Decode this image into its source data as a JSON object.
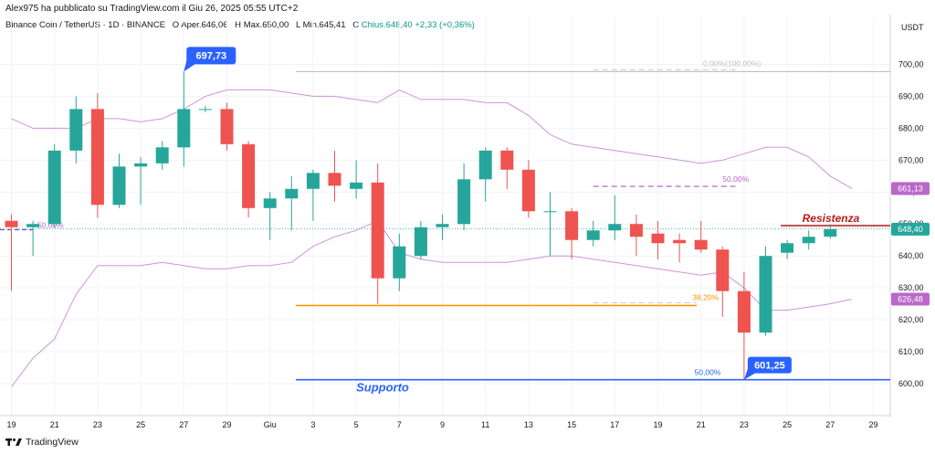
{
  "header": {
    "publisher": "Alex975 ha pubblicato su TradingView.com il Giu 26, 2025 05:55 UTC+2",
    "symbol": "Binance Coin / TetherUS · 1D · BINANCE",
    "o_label": "O",
    "o_value": "Aper.646,06",
    "h_label": "H",
    "h_value": "Max.650,00",
    "l_label": "L",
    "l_value": "Min.645,41",
    "c_label": "C",
    "c_value": "Chius.648,40",
    "change": "+2,33 (+0,36%)"
  },
  "footer": {
    "brand": "TradingView"
  },
  "colors": {
    "up": "#26a69a",
    "down": "#ef5350",
    "band": "#ce93d8",
    "support": "#2962ff",
    "fib": "#ff9800",
    "resistance": "#b71c1c",
    "text": "#131722",
    "grid": "#f0f3fa",
    "axis_text": "#131722"
  },
  "chart_data": {
    "type": "candlestick",
    "currency": "USDT",
    "ylim": [
      590,
      715
    ],
    "y_ticks": [
      "700,00",
      "690,00",
      "680,00",
      "670,00",
      "660,00",
      "650,00",
      "640,00",
      "630,00",
      "620,00",
      "610,00",
      "600,00"
    ],
    "x_ticks": [
      "19",
      "21",
      "23",
      "25",
      "27",
      "29",
      "Giu",
      "3",
      "5",
      "7",
      "9",
      "11",
      "13",
      "15",
      "17",
      "19",
      "21",
      "23",
      "25",
      "27",
      "29"
    ],
    "candles": [
      {
        "date": "May 19",
        "o": 651,
        "h": 653,
        "l": 629,
        "c": 649
      },
      {
        "date": "May 20",
        "o": 649,
        "h": 651,
        "l": 640,
        "c": 650
      },
      {
        "date": "May 21",
        "o": 650,
        "h": 675,
        "l": 649,
        "c": 673
      },
      {
        "date": "May 22",
        "o": 673,
        "h": 690,
        "l": 669,
        "c": 686
      },
      {
        "date": "May 23",
        "o": 686,
        "h": 691,
        "l": 652,
        "c": 656
      },
      {
        "date": "May 24",
        "o": 656,
        "h": 672,
        "l": 655,
        "c": 668
      },
      {
        "date": "May 25",
        "o": 668,
        "h": 671,
        "l": 656,
        "c": 669
      },
      {
        "date": "May 26",
        "o": 669,
        "h": 676,
        "l": 667,
        "c": 674
      },
      {
        "date": "May 27",
        "o": 674,
        "h": 697.73,
        "l": 668,
        "c": 686
      },
      {
        "date": "May 28",
        "o": 686,
        "h": 687,
        "l": 685,
        "c": 686
      },
      {
        "date": "May 29",
        "o": 686,
        "h": 688,
        "l": 673,
        "c": 675
      },
      {
        "date": "May 30",
        "o": 675,
        "h": 676,
        "l": 652,
        "c": 655
      },
      {
        "date": "May 31",
        "o": 655,
        "h": 660,
        "l": 645,
        "c": 658
      },
      {
        "date": "Jun 1",
        "o": 658,
        "h": 665,
        "l": 648,
        "c": 661
      },
      {
        "date": "Jun 2",
        "o": 661,
        "h": 667,
        "l": 651,
        "c": 666
      },
      {
        "date": "Jun 3",
        "o": 666,
        "h": 673,
        "l": 657,
        "c": 662
      },
      {
        "date": "Jun 4",
        "o": 661,
        "h": 670,
        "l": 658,
        "c": 663
      },
      {
        "date": "Jun 5",
        "o": 663,
        "h": 669,
        "l": 625,
        "c": 633
      },
      {
        "date": "Jun 6",
        "o": 633,
        "h": 647,
        "l": 629,
        "c": 643
      },
      {
        "date": "Jun 7",
        "o": 640,
        "h": 651,
        "l": 639,
        "c": 649
      },
      {
        "date": "Jun 8",
        "o": 649,
        "h": 653,
        "l": 645,
        "c": 650
      },
      {
        "date": "Jun 9",
        "o": 650,
        "h": 669,
        "l": 648,
        "c": 664
      },
      {
        "date": "Jun 10",
        "o": 664,
        "h": 674,
        "l": 657,
        "c": 673
      },
      {
        "date": "Jun 11",
        "o": 673,
        "h": 674,
        "l": 661,
        "c": 667
      },
      {
        "date": "Jun 12",
        "o": 667,
        "h": 670,
        "l": 652,
        "c": 654
      },
      {
        "date": "Jun 13",
        "o": 654,
        "h": 660,
        "l": 640,
        "c": 654
      },
      {
        "date": "Jun 14",
        "o": 654,
        "h": 655,
        "l": 639,
        "c": 645
      },
      {
        "date": "Jun 15",
        "o": 645,
        "h": 651,
        "l": 643,
        "c": 648
      },
      {
        "date": "Jun 16",
        "o": 648,
        "h": 659,
        "l": 645,
        "c": 650
      },
      {
        "date": "Jun 17",
        "o": 650,
        "h": 653,
        "l": 640,
        "c": 646
      },
      {
        "date": "Jun 18",
        "o": 647,
        "h": 651,
        "l": 639,
        "c": 644
      },
      {
        "date": "Jun 19",
        "o": 645,
        "h": 647,
        "l": 638,
        "c": 644
      },
      {
        "date": "Jun 20",
        "o": 645,
        "h": 651,
        "l": 641,
        "c": 642
      },
      {
        "date": "Jun 21",
        "o": 642,
        "h": 643,
        "l": 621,
        "c": 629
      },
      {
        "date": "Jun 22",
        "o": 629,
        "h": 635,
        "l": 601.25,
        "c": 616
      },
      {
        "date": "Jun 23",
        "o": 616,
        "h": 643,
        "l": 615,
        "c": 640
      },
      {
        "date": "Jun 24",
        "o": 641,
        "h": 645,
        "l": 639,
        "c": 644
      },
      {
        "date": "Jun 25",
        "o": 644,
        "h": 648,
        "l": 642,
        "c": 646
      },
      {
        "date": "Jun 26",
        "o": 646.06,
        "h": 650.0,
        "l": 645.41,
        "c": 648.4
      }
    ],
    "bollinger_upper": [
      683,
      680,
      680,
      680,
      683,
      683,
      682,
      683,
      686,
      690,
      692,
      692,
      692,
      691,
      690,
      690,
      689,
      688,
      692,
      689,
      689,
      689,
      688,
      688,
      684,
      678,
      675,
      674,
      673,
      672,
      671,
      670,
      669,
      670,
      672,
      674,
      674,
      671,
      665,
      661.13
    ],
    "bollinger_lower": [
      599,
      608,
      614,
      628,
      637,
      637,
      637,
      638,
      637,
      636,
      636,
      637,
      637,
      638,
      643,
      646,
      648,
      651,
      641,
      639,
      638,
      638,
      638,
      638,
      639,
      640,
      640,
      639,
      638,
      637,
      636,
      635,
      634,
      635,
      630,
      623,
      623,
      624,
      625,
      626.48
    ],
    "price_labels": {
      "current": "648,40",
      "upper_band": "661,13",
      "lower_band": "626,48"
    },
    "annotations": {
      "high_label": "697,73",
      "low_label": "601,25",
      "support_label": "Supporto",
      "resistance_label": "Resistenza",
      "fib_1": {
        "label": "0,00%(100,00%)",
        "price": 697.73
      },
      "fib_2": {
        "label": "50,00%",
        "price": 661.8
      },
      "fib_3": {
        "label": "38,20%",
        "price": 624.5
      },
      "fib_4": {
        "label": "50,00%",
        "price": 601.25
      },
      "fib_left": {
        "label": "50,00%",
        "price": 648.5
      },
      "support_price": 601.25,
      "resistance_price": 649.5,
      "orange_price": 624.5
    }
  }
}
